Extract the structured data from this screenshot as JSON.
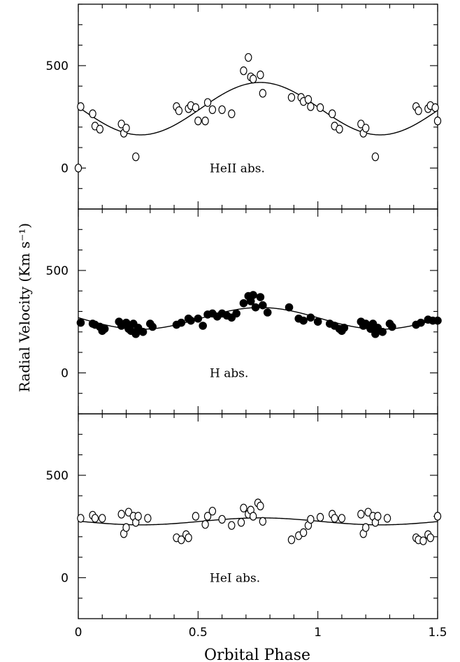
{
  "chart_data": {
    "type": "scatter",
    "xlabel": "Orbital Phase",
    "ylabel": "Radial Velocity (Km s⁻¹)",
    "xlim": [
      0,
      1.5
    ],
    "x_ticks": [
      "0",
      "0.5",
      "1",
      "1.5"
    ],
    "panels": [
      {
        "label": "HeII abs.",
        "marker": "open-circle",
        "ylim": [
          -200,
          800
        ],
        "y_ticks": [
          "0",
          "500"
        ],
        "fit": {
          "mean": 290,
          "amplitude": 128,
          "max_phase": 0.76
        },
        "points": [
          [
            0.0,
            0
          ],
          [
            0.01,
            300
          ],
          [
            0.06,
            265
          ],
          [
            0.07,
            205
          ],
          [
            0.09,
            190
          ],
          [
            0.18,
            215
          ],
          [
            0.19,
            170
          ],
          [
            0.2,
            195
          ],
          [
            0.24,
            55
          ],
          [
            0.41,
            300
          ],
          [
            0.42,
            280
          ],
          [
            0.46,
            290
          ],
          [
            0.47,
            305
          ],
          [
            0.49,
            295
          ],
          [
            0.5,
            230
          ],
          [
            0.53,
            230
          ],
          [
            0.54,
            320
          ],
          [
            0.56,
            285
          ],
          [
            0.6,
            285
          ],
          [
            0.64,
            265
          ],
          [
            0.69,
            475
          ],
          [
            0.71,
            540
          ],
          [
            0.72,
            445
          ],
          [
            0.73,
            435
          ],
          [
            0.76,
            455
          ],
          [
            0.77,
            365
          ],
          [
            0.89,
            345
          ],
          [
            0.93,
            345
          ],
          [
            0.94,
            325
          ],
          [
            0.96,
            335
          ],
          [
            0.97,
            300
          ],
          [
            1.01,
            295
          ],
          [
            1.06,
            265
          ],
          [
            1.07,
            205
          ],
          [
            1.09,
            190
          ],
          [
            1.18,
            215
          ],
          [
            1.19,
            170
          ],
          [
            1.2,
            195
          ],
          [
            1.24,
            55
          ],
          [
            1.41,
            300
          ],
          [
            1.42,
            280
          ],
          [
            1.46,
            290
          ],
          [
            1.47,
            305
          ],
          [
            1.49,
            295
          ],
          [
            1.5,
            230
          ]
        ]
      },
      {
        "label": "H abs.",
        "marker": "filled-circle",
        "ylim": [
          -200,
          800
        ],
        "y_ticks": [
          "0",
          "500"
        ],
        "fit": {
          "mean": 266,
          "amplitude": 53,
          "max_phase": 0.76
        },
        "points": [
          [
            0.01,
            245
          ],
          [
            0.06,
            240
          ],
          [
            0.07,
            235
          ],
          [
            0.09,
            225
          ],
          [
            0.1,
            205
          ],
          [
            0.11,
            215
          ],
          [
            0.17,
            250
          ],
          [
            0.18,
            230
          ],
          [
            0.2,
            245
          ],
          [
            0.21,
            215
          ],
          [
            0.22,
            205
          ],
          [
            0.23,
            240
          ],
          [
            0.24,
            190
          ],
          [
            0.25,
            220
          ],
          [
            0.27,
            200
          ],
          [
            0.3,
            240
          ],
          [
            0.31,
            225
          ],
          [
            0.41,
            235
          ],
          [
            0.43,
            245
          ],
          [
            0.46,
            265
          ],
          [
            0.47,
            255
          ],
          [
            0.5,
            265
          ],
          [
            0.52,
            230
          ],
          [
            0.54,
            285
          ],
          [
            0.56,
            290
          ],
          [
            0.58,
            275
          ],
          [
            0.6,
            290
          ],
          [
            0.62,
            280
          ],
          [
            0.64,
            270
          ],
          [
            0.66,
            290
          ],
          [
            0.69,
            340
          ],
          [
            0.71,
            375
          ],
          [
            0.72,
            350
          ],
          [
            0.73,
            380
          ],
          [
            0.74,
            320
          ],
          [
            0.76,
            370
          ],
          [
            0.77,
            330
          ],
          [
            0.79,
            295
          ],
          [
            0.88,
            320
          ],
          [
            0.92,
            265
          ],
          [
            0.94,
            255
          ],
          [
            0.97,
            270
          ],
          [
            1.0,
            250
          ],
          [
            1.05,
            240
          ],
          [
            1.07,
            230
          ],
          [
            1.09,
            215
          ],
          [
            1.1,
            205
          ],
          [
            1.11,
            220
          ],
          [
            1.18,
            250
          ],
          [
            1.19,
            230
          ],
          [
            1.2,
            240
          ],
          [
            1.22,
            215
          ],
          [
            1.23,
            240
          ],
          [
            1.24,
            190
          ],
          [
            1.25,
            220
          ],
          [
            1.27,
            200
          ],
          [
            1.3,
            240
          ],
          [
            1.31,
            225
          ],
          [
            1.41,
            235
          ],
          [
            1.43,
            245
          ],
          [
            1.46,
            260
          ],
          [
            1.48,
            255
          ],
          [
            1.5,
            255
          ]
        ]
      },
      {
        "label": "HeI abs.",
        "marker": "open-circle",
        "ylim": [
          -200,
          800
        ],
        "y_ticks": [
          "0",
          "500"
        ],
        "fit": {
          "mean": 275,
          "amplitude": 17,
          "max_phase": 0.76
        },
        "points": [
          [
            0.01,
            290
          ],
          [
            0.06,
            305
          ],
          [
            0.07,
            290
          ],
          [
            0.1,
            290
          ],
          [
            0.18,
            310
          ],
          [
            0.19,
            215
          ],
          [
            0.2,
            245
          ],
          [
            0.21,
            320
          ],
          [
            0.23,
            300
          ],
          [
            0.24,
            270
          ],
          [
            0.25,
            300
          ],
          [
            0.29,
            290
          ],
          [
            0.41,
            195
          ],
          [
            0.43,
            185
          ],
          [
            0.45,
            210
          ],
          [
            0.46,
            195
          ],
          [
            0.49,
            300
          ],
          [
            0.53,
            260
          ],
          [
            0.54,
            300
          ],
          [
            0.56,
            325
          ],
          [
            0.6,
            285
          ],
          [
            0.64,
            255
          ],
          [
            0.68,
            270
          ],
          [
            0.69,
            340
          ],
          [
            0.71,
            310
          ],
          [
            0.72,
            330
          ],
          [
            0.73,
            300
          ],
          [
            0.75,
            365
          ],
          [
            0.76,
            350
          ],
          [
            0.77,
            275
          ],
          [
            0.89,
            185
          ],
          [
            0.92,
            205
          ],
          [
            0.94,
            220
          ],
          [
            0.96,
            255
          ],
          [
            0.97,
            285
          ],
          [
            1.01,
            295
          ],
          [
            1.06,
            310
          ],
          [
            1.07,
            290
          ],
          [
            1.1,
            290
          ],
          [
            1.18,
            310
          ],
          [
            1.19,
            215
          ],
          [
            1.2,
            245
          ],
          [
            1.21,
            320
          ],
          [
            1.23,
            300
          ],
          [
            1.24,
            270
          ],
          [
            1.25,
            300
          ],
          [
            1.29,
            290
          ],
          [
            1.41,
            195
          ],
          [
            1.42,
            185
          ],
          [
            1.44,
            180
          ],
          [
            1.46,
            210
          ],
          [
            1.47,
            195
          ],
          [
            1.5,
            300
          ]
        ]
      }
    ]
  }
}
